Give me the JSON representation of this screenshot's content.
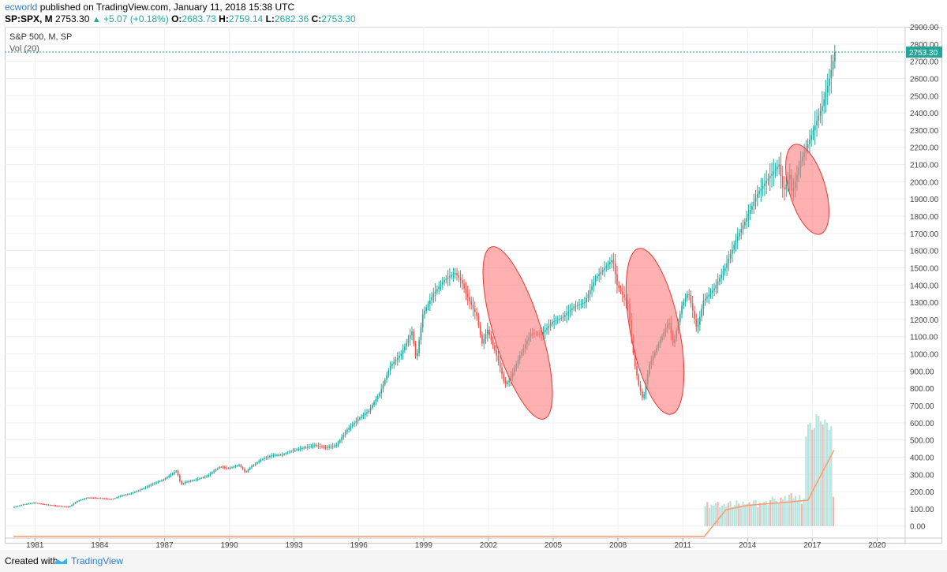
{
  "header": {
    "author": "ecworld",
    "published_text": "published on TradingView.com, January 11, 2018 15:38 UTC",
    "symbol": "SP:SPX, M",
    "last": "2753.30",
    "change": "+5.07 (+0.18%)",
    "open_label": "O:",
    "open": "2683.73",
    "high_label": "H:",
    "high": "2759.14",
    "low_label": "L:",
    "low": "2682.36",
    "close_label": "C:",
    "close": "2753.30"
  },
  "legend": {
    "title": "S&P 500, M, SP",
    "volume": "Vol (20)"
  },
  "footer": {
    "created_with": "Created with",
    "brand": "TradingView"
  },
  "colors": {
    "up": "#26a69a",
    "down": "#ef5350",
    "ellipse_fill": "#ff7b7b",
    "ellipse_stroke": "#e53935",
    "volume_ma": "#ff9a6a",
    "last_price_line": "#26a69a"
  },
  "chart_data": {
    "type": "candlestick",
    "title": "S&P 500, M, SP",
    "x_ticks": [
      "1981",
      "1984",
      "1987",
      "1990",
      "1993",
      "1996",
      "1999",
      "2002",
      "2005",
      "2008",
      "2011",
      "2014",
      "2017",
      "2020"
    ],
    "y_ticks": [
      "0.00",
      "100.00",
      "200.00",
      "300.00",
      "400.00",
      "500.00",
      "600.00",
      "700.00",
      "800.00",
      "900.00",
      "1000.00",
      "1100.00",
      "1200.00",
      "1300.00",
      "1400.00",
      "1500.00",
      "1600.00",
      "1700.00",
      "1800.00",
      "1900.00",
      "2000.00",
      "2100.00",
      "2200.00",
      "2300.00",
      "2400.00",
      "2500.00",
      "2600.00",
      "2700.00",
      "2800.00",
      "2900.00"
    ],
    "ylim": [
      -70,
      2900
    ],
    "xlim": [
      1979.6,
      2021.3
    ],
    "last_price_label": "2753.30",
    "last_price": 2753.3,
    "price_path": [
      [
        1980.0,
        108
      ],
      [
        1980.5,
        125
      ],
      [
        1981.0,
        135
      ],
      [
        1981.5,
        125
      ],
      [
        1982.0,
        118
      ],
      [
        1982.6,
        110
      ],
      [
        1983.0,
        145
      ],
      [
        1983.5,
        165
      ],
      [
        1984.0,
        162
      ],
      [
        1984.6,
        155
      ],
      [
        1985.0,
        175
      ],
      [
        1985.5,
        190
      ],
      [
        1986.0,
        215
      ],
      [
        1986.5,
        245
      ],
      [
        1987.0,
        270
      ],
      [
        1987.6,
        322
      ],
      [
        1987.8,
        240
      ],
      [
        1988.0,
        255
      ],
      [
        1988.5,
        270
      ],
      [
        1989.0,
        290
      ],
      [
        1989.6,
        345
      ],
      [
        1990.0,
        335
      ],
      [
        1990.5,
        355
      ],
      [
        1990.8,
        310
      ],
      [
        1991.0,
        340
      ],
      [
        1991.5,
        385
      ],
      [
        1992.0,
        410
      ],
      [
        1992.5,
        415
      ],
      [
        1993.0,
        440
      ],
      [
        1993.5,
        455
      ],
      [
        1994.0,
        470
      ],
      [
        1994.5,
        455
      ],
      [
        1995.0,
        470
      ],
      [
        1995.5,
        560
      ],
      [
        1996.0,
        620
      ],
      [
        1996.5,
        670
      ],
      [
        1997.0,
        770
      ],
      [
        1997.5,
        930
      ],
      [
        1998.0,
        1000
      ],
      [
        1998.5,
        1130
      ],
      [
        1998.7,
        960
      ],
      [
        1999.0,
        1230
      ],
      [
        1999.5,
        1350
      ],
      [
        2000.0,
        1430
      ],
      [
        2000.5,
        1470
      ],
      [
        2000.8,
        1420
      ],
      [
        2001.0,
        1350
      ],
      [
        2001.5,
        1220
      ],
      [
        2001.75,
        1060
      ],
      [
        2002.0,
        1140
      ],
      [
        2002.5,
        960
      ],
      [
        2002.8,
        820
      ],
      [
        2003.0,
        845
      ],
      [
        2003.5,
        990
      ],
      [
        2004.0,
        1120
      ],
      [
        2004.5,
        1115
      ],
      [
        2005.0,
        1185
      ],
      [
        2005.5,
        1215
      ],
      [
        2006.0,
        1275
      ],
      [
        2006.5,
        1300
      ],
      [
        2007.0,
        1440
      ],
      [
        2007.5,
        1510
      ],
      [
        2007.8,
        1550
      ],
      [
        2008.0,
        1400
      ],
      [
        2008.5,
        1290
      ],
      [
        2008.8,
        950
      ],
      [
        2009.0,
        820
      ],
      [
        2009.2,
        730
      ],
      [
        2009.5,
        940
      ],
      [
        2010.0,
        1080
      ],
      [
        2010.4,
        1190
      ],
      [
        2010.6,
        1050
      ],
      [
        2011.0,
        1280
      ],
      [
        2011.3,
        1360
      ],
      [
        2011.7,
        1140
      ],
      [
        2012.0,
        1310
      ],
      [
        2012.5,
        1380
      ],
      [
        2013.0,
        1500
      ],
      [
        2013.5,
        1660
      ],
      [
        2014.0,
        1790
      ],
      [
        2014.5,
        1930
      ],
      [
        2015.0,
        2020
      ],
      [
        2015.5,
        2100
      ],
      [
        2015.7,
        1940
      ],
      [
        2016.0,
        2040
      ],
      [
        2016.1,
        1930
      ],
      [
        2016.5,
        2120
      ],
      [
        2017.0,
        2270
      ],
      [
        2017.5,
        2440
      ],
      [
        2017.8,
        2580
      ],
      [
        2018.0,
        2700
      ],
      [
        2018.03,
        2753.3
      ]
    ],
    "volume_bars_2012_2018": [
      115,
      140,
      105,
      125,
      118,
      132,
      140,
      108,
      120,
      128,
      112,
      135,
      145,
      110,
      122,
      150,
      130,
      118,
      142,
      125,
      128,
      138,
      120,
      148,
      152,
      110,
      135,
      130,
      140,
      145,
      122,
      150,
      170,
      160,
      145,
      132,
      165,
      155,
      175,
      148,
      182,
      190,
      160,
      175,
      150,
      180,
      130,
      160,
      520,
      590,
      600,
      560,
      570,
      650,
      640,
      610,
      590,
      620,
      600,
      560,
      580,
      170
    ],
    "volume_ma": [
      [
        1980.0,
        0
      ],
      [
        2012.0,
        0
      ],
      [
        2013.0,
        95
      ],
      [
        2014.0,
        120
      ],
      [
        2015.0,
        130
      ],
      [
        2016.0,
        140
      ],
      [
        2016.8,
        150
      ],
      [
        2017.0,
        200
      ],
      [
        2017.5,
        320
      ],
      [
        2018.0,
        440
      ]
    ],
    "highlight_ellipses": [
      "2000–2003 decline",
      "2007–2009 decline",
      "2015–2016 correction"
    ]
  }
}
